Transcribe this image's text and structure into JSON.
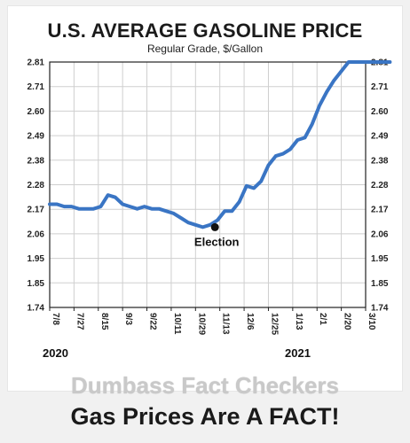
{
  "chart_data": {
    "type": "line",
    "title": "U.S. AVERAGE GASOLINE PRICE",
    "subtitle": "Regular Grade, $/Gallon",
    "x_tick_labels": [
      "7/8",
      "7/27",
      "8/15",
      "9/3",
      "9/22",
      "10/11",
      "10/29",
      "11/13",
      "12/6",
      "12/25",
      "1/13",
      "2/1",
      "2/20",
      "3/10"
    ],
    "y_tick_labels": [
      "1.74",
      "1.85",
      "1.95",
      "2.06",
      "2.17",
      "2.28",
      "2.38",
      "2.49",
      "2.60",
      "2.71",
      "2.81"
    ],
    "ylim": [
      1.74,
      2.81
    ],
    "year_labels": [
      "2020",
      "2021"
    ],
    "grid": "vertical and horizontal gridlines",
    "line_color": "#3a75c4",
    "series": [
      {
        "x_index": [
          0,
          0.3,
          0.6,
          0.9,
          1.2,
          1.5,
          1.8,
          2.1,
          2.4,
          2.7,
          3.0,
          3.3,
          3.6,
          3.9,
          4.2,
          4.5,
          4.8,
          5.1,
          5.4,
          5.7,
          6.0,
          6.3,
          6.6,
          6.9,
          7.2,
          7.5,
          7.8,
          8.1,
          8.4,
          8.7,
          9.0,
          9.3,
          9.6,
          9.9,
          10.2,
          10.5,
          10.8,
          11.1,
          11.4,
          11.7,
          12.0,
          12.3,
          12.6,
          12.9,
          13.2,
          13.5,
          13.8,
          14.0
        ],
        "values": [
          2.19,
          2.19,
          2.18,
          2.18,
          2.17,
          2.17,
          2.17,
          2.18,
          2.23,
          2.22,
          2.19,
          2.18,
          2.17,
          2.18,
          2.17,
          2.17,
          2.16,
          2.15,
          2.13,
          2.11,
          2.1,
          2.09,
          2.1,
          2.12,
          2.16,
          2.16,
          2.2,
          2.27,
          2.26,
          2.29,
          2.36,
          2.4,
          2.41,
          2.43,
          2.47,
          2.48,
          2.54,
          2.62,
          2.68,
          2.73,
          2.77,
          2.81,
          2.81,
          2.81,
          2.81,
          2.81,
          2.81,
          2.81
        ]
      }
    ],
    "annotation": {
      "label": "Election",
      "x_index": 6.8,
      "value": 2.09
    }
  },
  "captions": {
    "line1": "Dumbass Fact Checkers",
    "line2": "Gas Prices Are A FACT!"
  }
}
